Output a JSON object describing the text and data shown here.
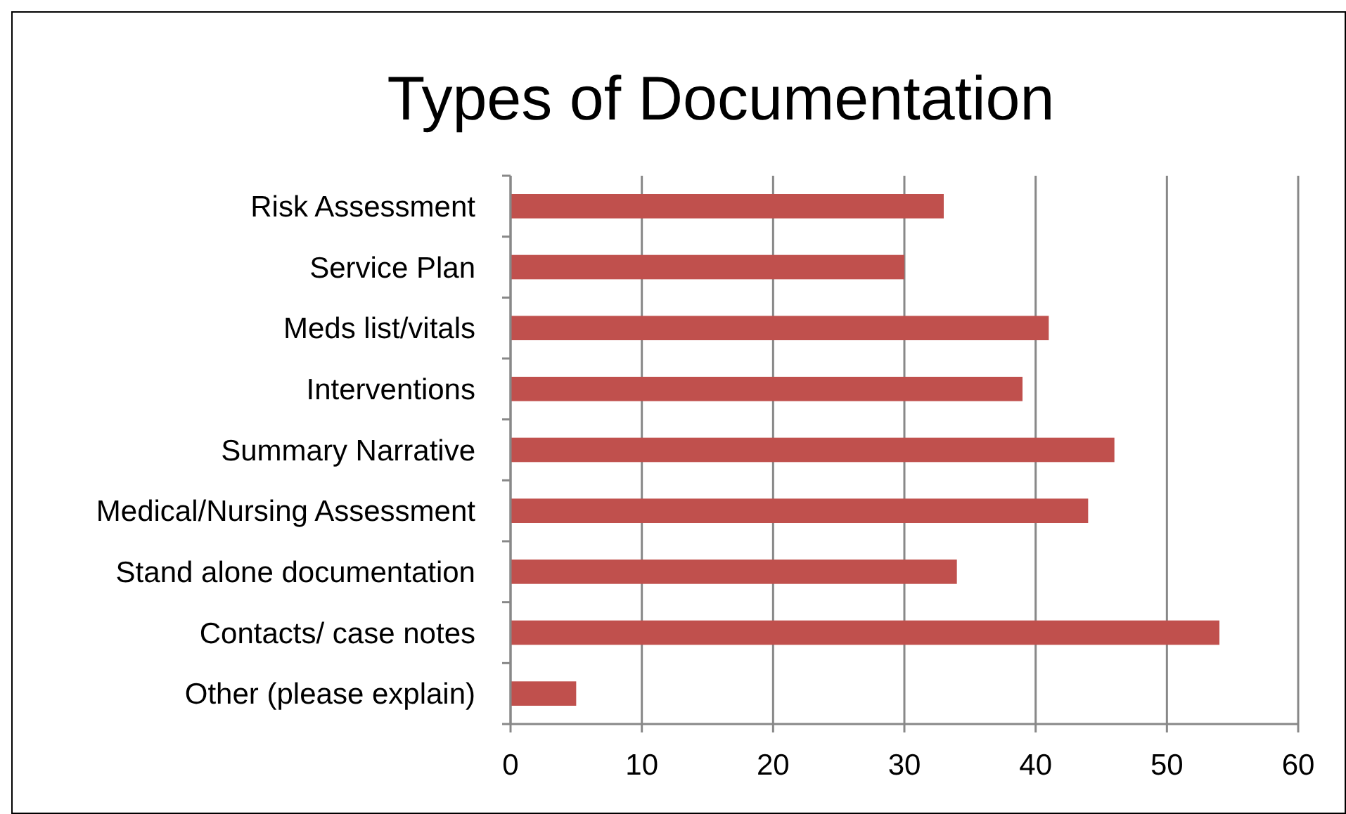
{
  "chart_data": {
    "type": "bar",
    "title": "Types of Documentation",
    "orientation": "horizontal",
    "categories": [
      "Risk Assessment",
      "Service Plan",
      "Meds list/vitals",
      "Interventions",
      "Summary Narrative",
      "Medical/Nursing Assessment",
      "Stand alone documentation",
      "Contacts/ case notes",
      "Other (please explain)"
    ],
    "values": [
      33,
      30,
      41,
      39,
      46,
      44,
      34,
      54,
      5
    ],
    "color": "#c0504d",
    "xlim": [
      0,
      60
    ],
    "xticks": [
      0,
      10,
      20,
      30,
      40,
      50,
      60
    ],
    "grid": "x"
  }
}
